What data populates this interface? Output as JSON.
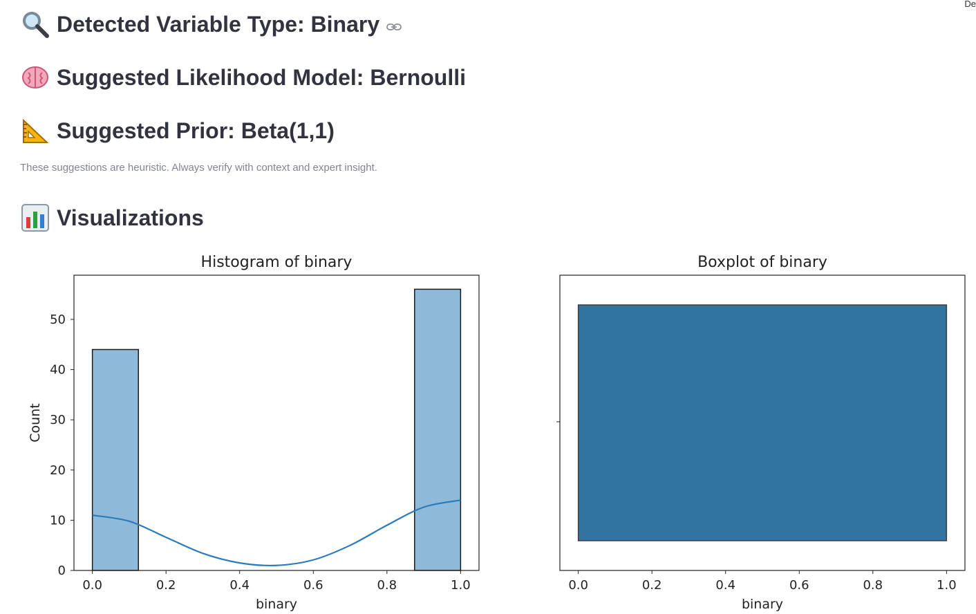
{
  "page": {
    "corner_text": "De",
    "type_heading": "Detected Variable Type: Binary",
    "model_heading": "Suggested Likelihood Model: Bernoulli",
    "prior_heading": "Suggested Prior: Beta(1,1)",
    "caption": "These suggestions are heuristic. Always verify with context and expert insight.",
    "viz_heading": "Visualizations",
    "icons": {
      "type": "magnifying-glass-icon",
      "model": "brain-icon",
      "prior": "triangular-ruler-icon",
      "viz": "bar-chart-icon",
      "anchor": "link-icon"
    }
  },
  "colors": {
    "heading": "#31333f",
    "caption": "#808495",
    "bar_fill": "#8fb9d9",
    "box_fill": "#3274a1",
    "kde_line": "#2b7bba"
  },
  "chart_data": [
    {
      "type": "bar",
      "title": "Histogram of binary",
      "xlabel": "binary",
      "ylabel": "Count",
      "xlim": [
        -0.05,
        1.05
      ],
      "ylim": [
        0,
        58.8
      ],
      "xticks": [
        "0.0",
        "0.2",
        "0.4",
        "0.6",
        "0.8",
        "1.0"
      ],
      "yticks": [
        "0",
        "10",
        "20",
        "30",
        "40",
        "50"
      ],
      "bins": [
        {
          "x0": 0.0,
          "x1": 0.125,
          "count": 44
        },
        {
          "x0": 0.875,
          "x1": 1.0,
          "count": 56
        }
      ],
      "kde": {
        "x": [
          0,
          0.1,
          0.2,
          0.3,
          0.4,
          0.5,
          0.6,
          0.7,
          0.8,
          0.9,
          1.0
        ],
        "y": [
          11,
          9.8,
          6.6,
          3.4,
          1.5,
          1.0,
          2.1,
          5.0,
          9.0,
          12.6,
          14
        ]
      }
    },
    {
      "type": "box",
      "title": "Boxplot of binary",
      "xlabel": "binary",
      "xlim": [
        -0.05,
        1.05
      ],
      "xticks": [
        "0.0",
        "0.2",
        "0.4",
        "0.6",
        "0.8",
        "1.0"
      ],
      "box": {
        "q1": 0.0,
        "q3": 1.0,
        "whisker_low": 0.0,
        "whisker_high": 1.0
      }
    }
  ]
}
